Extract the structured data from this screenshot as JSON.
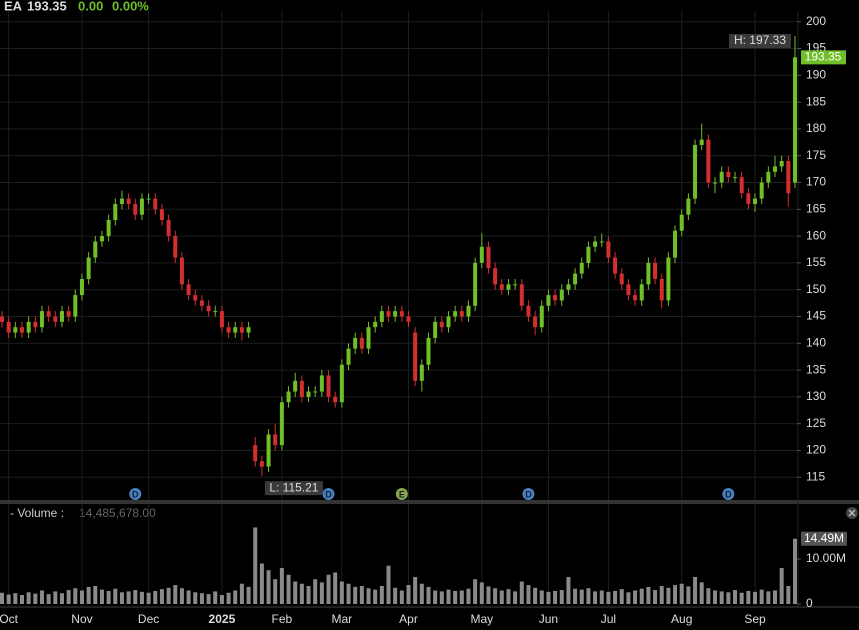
{
  "header": {
    "symbol": "EA",
    "last": "193.35",
    "change": "0.00",
    "change_pct": "0.00%"
  },
  "chart_data": {
    "type": "candlestick",
    "up_color": "#6fbf28",
    "down_color": "#d42f2f",
    "grid": true,
    "categories": [
      null,
      "Oct",
      null,
      null,
      null,
      null,
      null,
      null,
      null,
      null,
      null,
      null,
      "Nov",
      null,
      null,
      null,
      null,
      null,
      null,
      null,
      null,
      null,
      "Dec",
      null,
      null,
      null,
      null,
      null,
      null,
      null,
      null,
      null,
      null,
      "2025",
      null,
      null,
      null,
      null,
      null,
      null,
      null,
      null,
      "Feb",
      null,
      null,
      null,
      null,
      null,
      null,
      null,
      null,
      "Mar",
      null,
      null,
      null,
      null,
      null,
      null,
      null,
      null,
      null,
      "Apr",
      null,
      null,
      null,
      null,
      null,
      null,
      null,
      null,
      null,
      null,
      "May",
      null,
      null,
      null,
      null,
      null,
      null,
      null,
      null,
      null,
      "Jun",
      null,
      null,
      null,
      null,
      null,
      null,
      null,
      null,
      "Jul",
      null,
      null,
      null,
      null,
      null,
      null,
      null,
      null,
      null,
      null,
      "Aug",
      null,
      null,
      null,
      null,
      null,
      null,
      null,
      null,
      null,
      null,
      "Sep",
      null,
      null,
      null,
      null,
      null,
      null
    ],
    "open": [
      145,
      144,
      142,
      143,
      142,
      144,
      143,
      146,
      145,
      144,
      146,
      145,
      149,
      152,
      156,
      159,
      160,
      163,
      166,
      167,
      166,
      164,
      167,
      167,
      165,
      163,
      160,
      156,
      151,
      149,
      148,
      147,
      146,
      146,
      143,
      142,
      143,
      142,
      121,
      118,
      117,
      123,
      121,
      129,
      131,
      133,
      130,
      131,
      131,
      134,
      130,
      129,
      136,
      139,
      141,
      139,
      143,
      144,
      146,
      145,
      146,
      145,
      142,
      133,
      136,
      141,
      144,
      143,
      145,
      146,
      145,
      147,
      155,
      158,
      154,
      151,
      150,
      151,
      151,
      147,
      145,
      143,
      147,
      149,
      148,
      150,
      151,
      153,
      155,
      158,
      159,
      159,
      156,
      153,
      151,
      149,
      148,
      151,
      155,
      152,
      148,
      156,
      161,
      164,
      167,
      177,
      178,
      170,
      170,
      172,
      171,
      171,
      168,
      166,
      167,
      170,
      172,
      173,
      174,
      170
    ],
    "high": [
      146,
      145,
      144,
      144,
      145,
      145,
      147,
      147,
      146,
      147,
      147,
      150,
      153,
      157,
      160,
      161,
      164,
      167,
      168.5,
      168,
      167,
      168,
      168,
      168,
      166,
      164,
      161,
      157,
      152,
      150,
      149,
      148,
      147,
      147,
      144,
      144,
      144,
      144,
      122.5,
      119,
      124,
      125,
      130,
      132,
      134.5,
      134,
      132,
      132,
      135,
      135,
      131,
      137,
      140,
      142,
      142,
      144,
      145,
      147,
      147,
      147,
      147,
      146,
      143,
      137,
      142,
      145,
      145,
      146,
      147,
      147,
      148,
      156,
      160.5,
      159,
      155,
      152,
      152,
      152,
      152,
      148,
      146,
      148,
      150,
      150,
      151,
      152,
      154,
      156,
      159,
      160,
      160.5,
      160,
      157,
      154,
      152,
      150,
      152,
      156,
      156,
      153,
      157,
      162,
      165,
      168,
      178,
      181,
      179,
      171,
      173,
      173,
      172,
      172,
      169,
      168,
      171,
      173,
      175,
      175,
      175,
      197.33
    ],
    "low": [
      143,
      141,
      141,
      141,
      141,
      142,
      142,
      144,
      143,
      143,
      144,
      144,
      148,
      151,
      155,
      158,
      159,
      162,
      165,
      165,
      163,
      163,
      166,
      164,
      162,
      159,
      155,
      150,
      148,
      147,
      146,
      145,
      145,
      142,
      141,
      141,
      140.5,
      141,
      117,
      115.21,
      116,
      120,
      120,
      128,
      130,
      129,
      129,
      130,
      130,
      129,
      128,
      128,
      135,
      138,
      138,
      138,
      142,
      143,
      144,
      144,
      144,
      143,
      132,
      131,
      135,
      140,
      142,
      142,
      144,
      144,
      144,
      146,
      154,
      153,
      150,
      149,
      149,
      150,
      146,
      144,
      141.5,
      142,
      146,
      147,
      147,
      149,
      150,
      152,
      154,
      157,
      158,
      155,
      152,
      150,
      148,
      147,
      147,
      150,
      151,
      146.5,
      147,
      155,
      160,
      163,
      166,
      176,
      169,
      168,
      169,
      170,
      170,
      167,
      165,
      164.5,
      166,
      169,
      171,
      172,
      165.5,
      169
    ],
    "close": [
      144,
      142,
      143,
      142,
      144,
      143,
      146,
      145,
      144,
      146,
      145,
      149,
      152,
      156,
      159,
      160,
      163,
      166,
      167,
      166,
      164,
      167,
      167,
      165,
      163,
      160,
      156,
      151,
      149,
      148,
      147,
      146,
      146,
      143,
      142,
      143,
      142,
      143,
      118,
      117,
      123,
      121,
      129,
      131,
      133,
      130,
      131,
      131,
      134,
      130,
      129,
      136,
      139,
      141,
      139,
      143,
      144,
      146,
      145,
      146,
      145,
      144,
      133,
      136,
      141,
      144,
      143,
      145,
      146,
      145,
      147,
      155,
      158,
      154,
      151,
      150,
      151,
      151,
      147,
      145,
      143,
      147,
      149,
      148,
      150,
      151,
      153,
      155,
      158,
      159,
      159,
      156,
      153,
      151,
      149,
      148,
      151,
      155,
      152,
      148,
      156,
      161,
      164,
      167,
      177,
      178,
      170,
      170,
      172,
      171,
      171,
      168,
      166,
      167,
      170,
      172,
      173,
      174,
      168,
      193.35
    ],
    "ylim": [
      113,
      202
    ],
    "yticks": [
      115,
      120,
      125,
      130,
      135,
      140,
      145,
      150,
      155,
      160,
      165,
      170,
      175,
      180,
      185,
      190,
      195,
      200
    ],
    "last_price_label": {
      "value": 193.35,
      "label": "193.35"
    },
    "high_label": {
      "value": 197.33,
      "label": "H: 197.33"
    },
    "low_label": {
      "value": 115.21,
      "label": "L: 115.21"
    },
    "events": [
      {
        "label": "D",
        "at": 20
      },
      {
        "label": "D",
        "at": 49
      },
      {
        "label": "E",
        "at": 60
      },
      {
        "label": "D",
        "at": 79
      },
      {
        "label": "D",
        "at": 109
      }
    ],
    "volume": {
      "title": "- Volume :",
      "legend_value": "14,485,678.00",
      "color": "#8a8a8a",
      "values": [
        2500000,
        2100000,
        2400000,
        2000000,
        2600000,
        2300000,
        3000000,
        2200000,
        2800000,
        2400000,
        3100000,
        3500000,
        3000000,
        3800000,
        4000000,
        3200000,
        2900000,
        3400000,
        2600000,
        2800000,
        3100000,
        2700000,
        2500000,
        2900000,
        3300000,
        3600000,
        4200000,
        3500000,
        3000000,
        2600000,
        2400000,
        2200000,
        2800000,
        2000000,
        2500000,
        3000000,
        4500000,
        3800000,
        17000000,
        9000000,
        7500000,
        5500000,
        8000000,
        6500000,
        5000000,
        4500000,
        4000000,
        5500000,
        4800000,
        6500000,
        7000000,
        5000000,
        4500000,
        3800000,
        4000000,
        3500000,
        3200000,
        4000000,
        8500000,
        3600000,
        3000000,
        4200000,
        6000000,
        4500000,
        3800000,
        3000000,
        2800000,
        3200000,
        2900000,
        3000000,
        3400000,
        5500000,
        4800000,
        3900000,
        3500000,
        3000000,
        3300000,
        2800000,
        5000000,
        4200000,
        3600000,
        3000000,
        2700000,
        2900000,
        3100000,
        6000000,
        3400000,
        3200000,
        3500000,
        2800000,
        3000000,
        2700000,
        2900000,
        3300000,
        2600000,
        3000000,
        3400000,
        3800000,
        3100000,
        4000000,
        3600000,
        4200000,
        4500000,
        3900000,
        6000000,
        4800000,
        3500000,
        3000000,
        2800000,
        2600000,
        3100000,
        2500000,
        2900000,
        2700000,
        3200000,
        2800000,
        3000000,
        8000000,
        4000000,
        14485678
      ],
      "last_label": {
        "value": 14485678,
        "label": "14.49M"
      },
      "ylim": [
        0,
        18200000
      ],
      "yticks": [
        {
          "value": 0,
          "label": "0"
        },
        {
          "value": 10000000,
          "label": "10.00M"
        }
      ]
    }
  }
}
